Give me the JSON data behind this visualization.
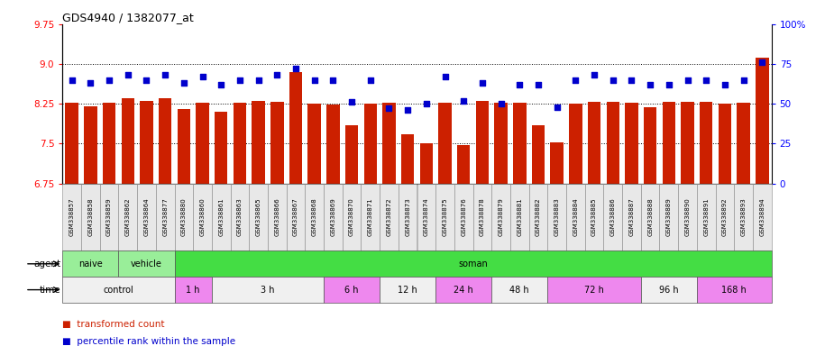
{
  "title": "GDS4940 / 1382077_at",
  "sample_labels": [
    "GSM338857",
    "GSM338858",
    "GSM338859",
    "GSM338862",
    "GSM338864",
    "GSM338877",
    "GSM338880",
    "GSM338860",
    "GSM338861",
    "GSM338863",
    "GSM338865",
    "GSM338866",
    "GSM338867",
    "GSM338868",
    "GSM338869",
    "GSM338870",
    "GSM338871",
    "GSM338872",
    "GSM338873",
    "GSM338874",
    "GSM338875",
    "GSM338876",
    "GSM338878",
    "GSM338879",
    "GSM338881",
    "GSM338882",
    "GSM338883",
    "GSM338884",
    "GSM338885",
    "GSM338886",
    "GSM338887",
    "GSM338888",
    "GSM338889",
    "GSM338890",
    "GSM338891",
    "GSM338892",
    "GSM338893",
    "GSM338894"
  ],
  "bar_values": [
    8.27,
    8.2,
    8.27,
    8.35,
    8.3,
    8.35,
    8.15,
    8.27,
    8.1,
    8.27,
    8.3,
    8.28,
    8.85,
    8.25,
    8.23,
    7.85,
    8.25,
    8.27,
    7.68,
    7.5,
    8.27,
    7.48,
    8.3,
    8.27,
    8.27,
    7.84,
    7.52,
    8.25,
    8.28,
    8.28,
    8.27,
    8.19,
    8.28,
    8.28,
    8.28,
    8.25,
    8.27,
    9.12
  ],
  "percentile_values": [
    65,
    63,
    65,
    68,
    65,
    68,
    63,
    67,
    62,
    65,
    65,
    68,
    72,
    65,
    65,
    51,
    65,
    47,
    46,
    50,
    67,
    52,
    63,
    50,
    62,
    62,
    48,
    65,
    68,
    65,
    65,
    62,
    62,
    65,
    65,
    62,
    65,
    76
  ],
  "ylim_left": [
    6.75,
    9.75
  ],
  "ylim_right": [
    0,
    100
  ],
  "yticks_left": [
    6.75,
    7.5,
    8.25,
    9.0,
    9.75
  ],
  "yticks_right": [
    0,
    25,
    50,
    75,
    100
  ],
  "bar_color": "#CC2000",
  "dot_color": "#0000CC",
  "agent_groups": [
    {
      "label": "naive",
      "start": 0,
      "end": 2,
      "color": "#99EE99"
    },
    {
      "label": "vehicle",
      "start": 3,
      "end": 5,
      "color": "#99EE99"
    },
    {
      "label": "soman",
      "start": 6,
      "end": 37,
      "color": "#44DD44"
    }
  ],
  "time_groups": [
    {
      "label": "control",
      "start": 0,
      "end": 5,
      "color": "#F0F0F0"
    },
    {
      "label": "1 h",
      "start": 6,
      "end": 7,
      "color": "#EE88EE"
    },
    {
      "label": "3 h",
      "start": 8,
      "end": 13,
      "color": "#F0F0F0"
    },
    {
      "label": "6 h",
      "start": 14,
      "end": 16,
      "color": "#EE88EE"
    },
    {
      "label": "12 h",
      "start": 17,
      "end": 19,
      "color": "#F0F0F0"
    },
    {
      "label": "24 h",
      "start": 20,
      "end": 22,
      "color": "#EE88EE"
    },
    {
      "label": "48 h",
      "start": 23,
      "end": 25,
      "color": "#F0F0F0"
    },
    {
      "label": "72 h",
      "start": 26,
      "end": 30,
      "color": "#EE88EE"
    },
    {
      "label": "96 h",
      "start": 31,
      "end": 33,
      "color": "#F0F0F0"
    },
    {
      "label": "168 h",
      "start": 34,
      "end": 37,
      "color": "#EE88EE"
    }
  ],
  "agent_row_label": "agent",
  "time_row_label": "time"
}
